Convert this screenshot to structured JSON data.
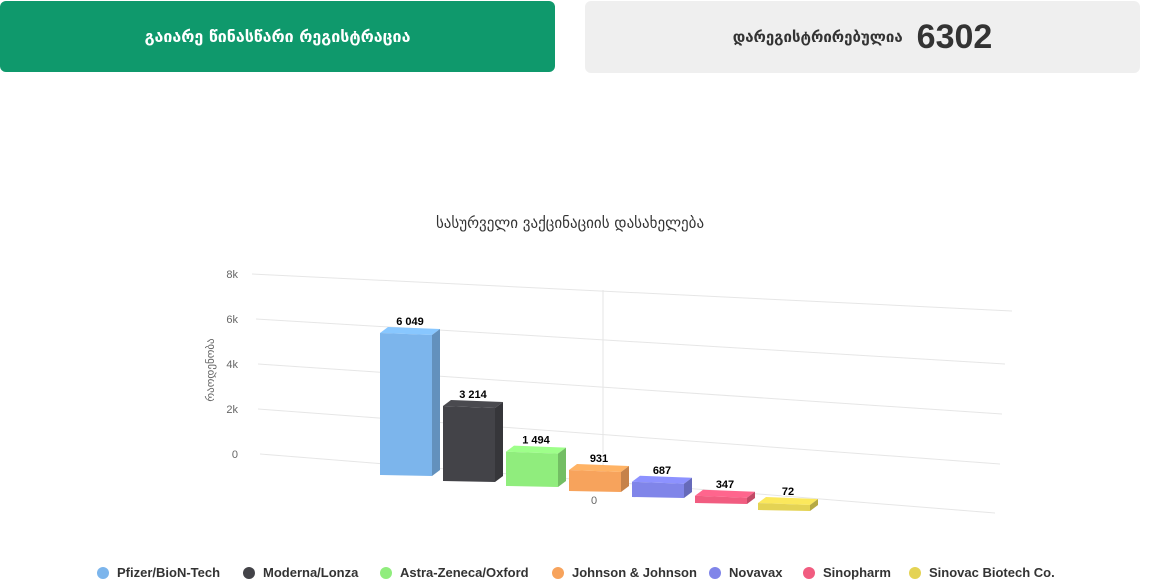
{
  "header": {
    "register_label": "გაიარე წინასწარი რეგისტრაცია",
    "registered_label": "დარეგისტრირებულია",
    "registered_count": "6302"
  },
  "chart_data": {
    "type": "bar",
    "title": "სასურველი ვაქცინაციის დასახელება",
    "ylabel": "რაოდენობა",
    "ylim": [
      0,
      8000
    ],
    "yticks": [
      "0",
      "2k",
      "4k",
      "6k",
      "8k"
    ],
    "x_tick": "0",
    "categories": [
      "Pfizer/BioN-Tech",
      "Moderna/Lonza",
      "Astra-Zeneca/Oxford",
      "Johnson & Johnson",
      "Novavax",
      "Sinopharm",
      "Sinovac Biotech Co."
    ],
    "values": [
      6049,
      3214,
      1494,
      931,
      687,
      347,
      72
    ],
    "value_labels": [
      "6 049",
      "3 214",
      "1 494",
      "931",
      "687",
      "347",
      "72"
    ],
    "colors": [
      "#7cb5ec",
      "#434348",
      "#90ed7d",
      "#f7a35c",
      "#8085e9",
      "#f15c80",
      "#e4d354"
    ],
    "legend_placement": "bottom",
    "grid": true
  }
}
